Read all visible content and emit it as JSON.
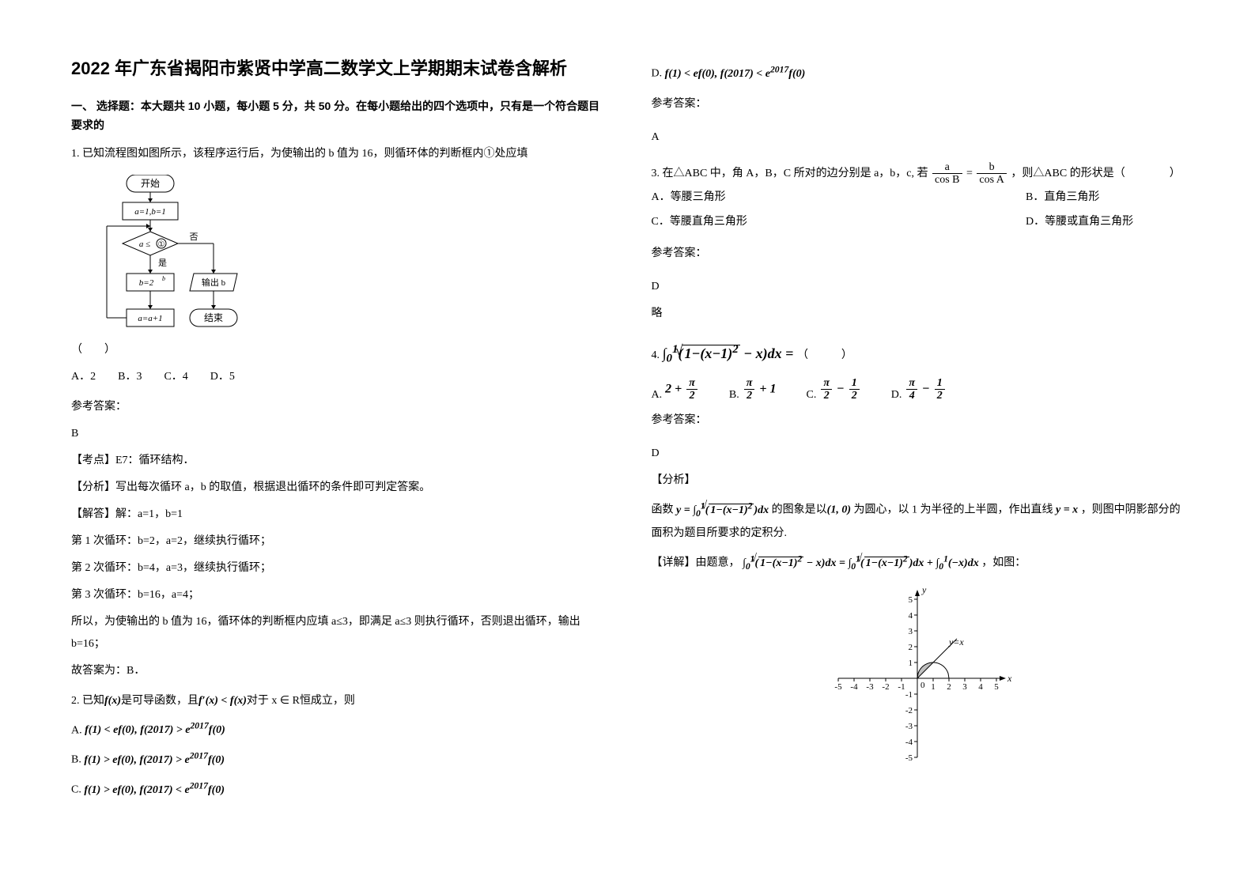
{
  "title": "2022 年广东省揭阳市紫贤中学高二数学文上学期期末试卷含解析",
  "section1_heading": "一、 选择题：本大题共 10 小题，每小题 5 分，共 50 分。在每小题给出的四个选项中，只有是一个符合题目要求的",
  "q1": {
    "text": "1. 已知流程图如图所示，该程序运行后，为使输出的 b 值为 16，则循环体的判断框内①处应填",
    "options": "A．2　　B．3　　C．4　　D．5",
    "answer_label": "参考答案：",
    "answer": "B",
    "sol_point": "【考点】E7：循环结构．",
    "sol_analysis": "【分析】写出每次循环 a，b 的取值，根据退出循环的条件即可判定答案。",
    "sol_detail_label": "【解答】解：a=1，b=1",
    "sol_loop1": "第 1 次循环：b=2，a=2，继续执行循环；",
    "sol_loop2": "第 2 次循环：b=4，a=3，继续执行循环；",
    "sol_loop3": "第 3 次循环：b=16，a=4；",
    "sol_conclusion": "所以，为使输出的 b 值为 16，循环体的判断框内应填 a≤3，即满足 a≤3 则执行循环，否则退出循环，输出 b=16；",
    "sol_final": "故答案为：B．"
  },
  "flowchart": {
    "start": "开始",
    "init": "a=1,b=1",
    "cond_prefix": "a ≤",
    "cond_label": "①",
    "yes": "是",
    "no": "否",
    "calc": "b=2",
    "calc_sup": "b",
    "output": "输出 b",
    "increment": "a=a+1",
    "end": "结束",
    "paren": "（　　）"
  },
  "q2": {
    "prefix": "2. 已知",
    "middle": "是可导函数，且",
    "suffix": "恒成立，则",
    "fx": "f(x)",
    "fpx": "f′(x) < f(x)",
    "xr": "对于 x ∈ R",
    "optA_label": "A.",
    "optA": "f(1) < ef(0), f(2017) > e",
    "optA_sup": "2017",
    "optA_end": "f(0)",
    "optB_label": "B.",
    "optB": "f(1) > ef(0), f(2017) > e",
    "optB_end": "f(0)",
    "optC_label": "C.",
    "optC": "f(1) > ef(0), f(2017) < e",
    "optC_end": "f(0)",
    "optD_label": "D.",
    "optD": "f(1) < ef(0), f(2017) < e",
    "optD_end": "f(0)",
    "answer_label": "参考答案：",
    "answer": "A"
  },
  "q3": {
    "prefix": "3. 在△ABC 中，角 A，B，C 所对的边分别是 a，b，c, 若 ",
    "frac1_num": "a",
    "frac1_den": "cos B",
    "eq": " = ",
    "frac2_num": "b",
    "frac2_den": "cos A",
    "suffix": " ，则△ABC 的形状是（　　　　）",
    "optA": "A．等腰三角形",
    "optB": "B．直角三角形",
    "optC": "C．等腰直角三角形",
    "optD": "D．等腰或直角三角形",
    "answer_label": "参考答案：",
    "answer": "D",
    "brief": "略"
  },
  "q4": {
    "label": "4. ",
    "integral": "∫",
    "int_a": "0",
    "int_b": "1",
    "integrand_part1": "1−(x−1)",
    "integrand_sup": "2",
    "integrand_part2": " − x",
    "dx": "dx = ",
    "paren": "（　　　）",
    "optA_label": "A.",
    "optA_pre": "2 + ",
    "optA_num": "π",
    "optA_den": "2",
    "optB_label": "B.",
    "optB_num": "π",
    "optB_den": "2",
    "optB_post": " + 1",
    "optC_label": "C.",
    "optC_num1": "π",
    "optC_den1": "2",
    "optC_mid": " − ",
    "optC_num2": "1",
    "optC_den2": "2",
    "optD_label": "D.",
    "optD_num1": "π",
    "optD_den1": "4",
    "optD_mid": " − ",
    "optD_num2": "1",
    "optD_den2": "2",
    "answer_label": "参考答案：",
    "answer": "D",
    "analysis_label": "【分析】",
    "analysis_prefix": "函数 ",
    "analysis_func": "y = ∫",
    "analysis_a": "0",
    "analysis_b": "1",
    "analysis_integrand": "1−(x−1)",
    "analysis_dx": "dx",
    "analysis_mid": " 的图象是以",
    "analysis_point": "(1, 0)",
    "analysis_rest": " 为圆心，以 1 为半径的上半圆，作出直线 ",
    "analysis_line": "y = x",
    "analysis_end": " ，则图中阴影部分的面积为题目所要求的定积分.",
    "detail_label": "【详解】由题意，",
    "detail_eq_left": "1−(x−1)",
    "detail_eq_part2": " − x",
    "detail_eq_mid": " = ",
    "detail_eq_plus": " + ",
    "detail_eq_neg": "(−x)",
    "detail_suffix": "，如图："
  },
  "chart": {
    "xmin": -5,
    "xmax": 5,
    "ymin": -5,
    "ymax": 5,
    "xticks": [
      -5,
      -4,
      -3,
      -2,
      -1,
      0,
      1,
      2,
      3,
      4,
      5
    ],
    "yticks": [
      -5,
      -4,
      -3,
      -2,
      -1,
      1,
      2,
      3,
      4,
      5
    ],
    "xlabel": "x",
    "ylabel": "y",
    "line_label": "y=x",
    "axis_color": "#000000",
    "shade_color": "#c0c0c0"
  }
}
